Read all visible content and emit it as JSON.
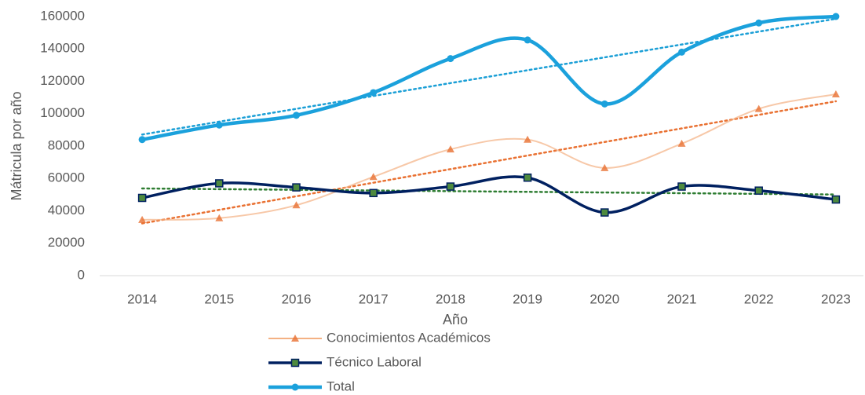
{
  "chart_data": {
    "type": "line",
    "xlabel": "Año",
    "ylabel": "Mátricula por año",
    "categories": [
      "2014",
      "2015",
      "2016",
      "2017",
      "2018",
      "2019",
      "2020",
      "2021",
      "2022",
      "2023"
    ],
    "series": [
      {
        "name": "Conocimientos Académicos",
        "color": "#f4b183",
        "marker": "triangle",
        "trend_color": "#e97132",
        "values": [
          34500,
          35500,
          43500,
          61000,
          78000,
          84000,
          66500,
          81500,
          103000,
          112000
        ]
      },
      {
        "name": "Técnico Laboral",
        "color": "#002060",
        "marker": "square",
        "trend_color": "#2e7d32",
        "values": [
          48000,
          57000,
          54500,
          51000,
          55000,
          60500,
          39000,
          55000,
          52500,
          47000
        ]
      },
      {
        "name": "Total",
        "color": "#1ba1dc",
        "marker": "circle",
        "trend_color": "#1b9fd6",
        "values": [
          84000,
          93000,
          99000,
          113000,
          134000,
          145500,
          106000,
          138000,
          156000,
          160000
        ]
      }
    ],
    "ylim": [
      0,
      160000
    ],
    "yticks": [
      0,
      20000,
      40000,
      60000,
      80000,
      100000,
      120000,
      140000,
      160000
    ],
    "trendline": true,
    "smooth": true,
    "legend": "bottom"
  }
}
